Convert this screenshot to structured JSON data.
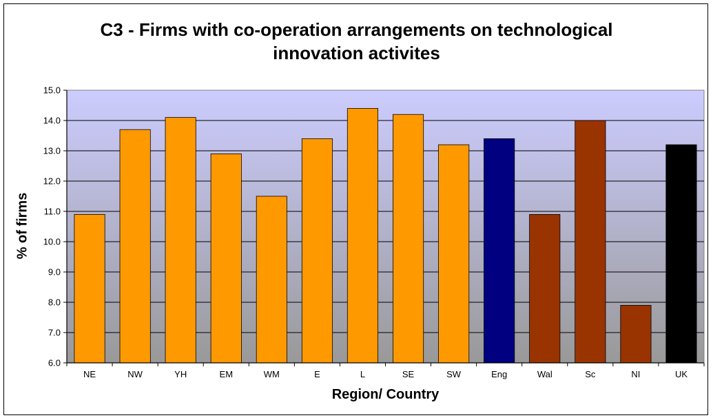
{
  "chart_data": {
    "type": "bar",
    "title_lines": [
      "C3 - Firms with co-operation arrangements on technological",
      "innovation activites"
    ],
    "xlabel": "Region/ Country",
    "ylabel": "% of firms",
    "ylim": [
      6.0,
      15.0
    ],
    "y_ticks": [
      "6.0",
      "7.0",
      "8.0",
      "9.0",
      "10.0",
      "11.0",
      "12.0",
      "13.0",
      "14.0",
      "15.0"
    ],
    "grid": true,
    "categories": [
      "NE",
      "NW",
      "YH",
      "EM",
      "WM",
      "E",
      "L",
      "SE",
      "SW",
      "Eng",
      "Wal",
      "Sc",
      "NI",
      "UK"
    ],
    "values": [
      10.9,
      13.7,
      14.1,
      12.9,
      11.5,
      13.4,
      14.4,
      14.2,
      13.2,
      13.4,
      10.9,
      14.0,
      7.9,
      13.2
    ],
    "bar_colors": [
      "#FF9900",
      "#FF9900",
      "#FF9900",
      "#FF9900",
      "#FF9900",
      "#FF9900",
      "#FF9900",
      "#FF9900",
      "#FF9900",
      "#000080",
      "#993300",
      "#993300",
      "#993300",
      "#000000"
    ],
    "plot_background": {
      "top": "#CCCCFF",
      "bottom": "#999999"
    }
  }
}
